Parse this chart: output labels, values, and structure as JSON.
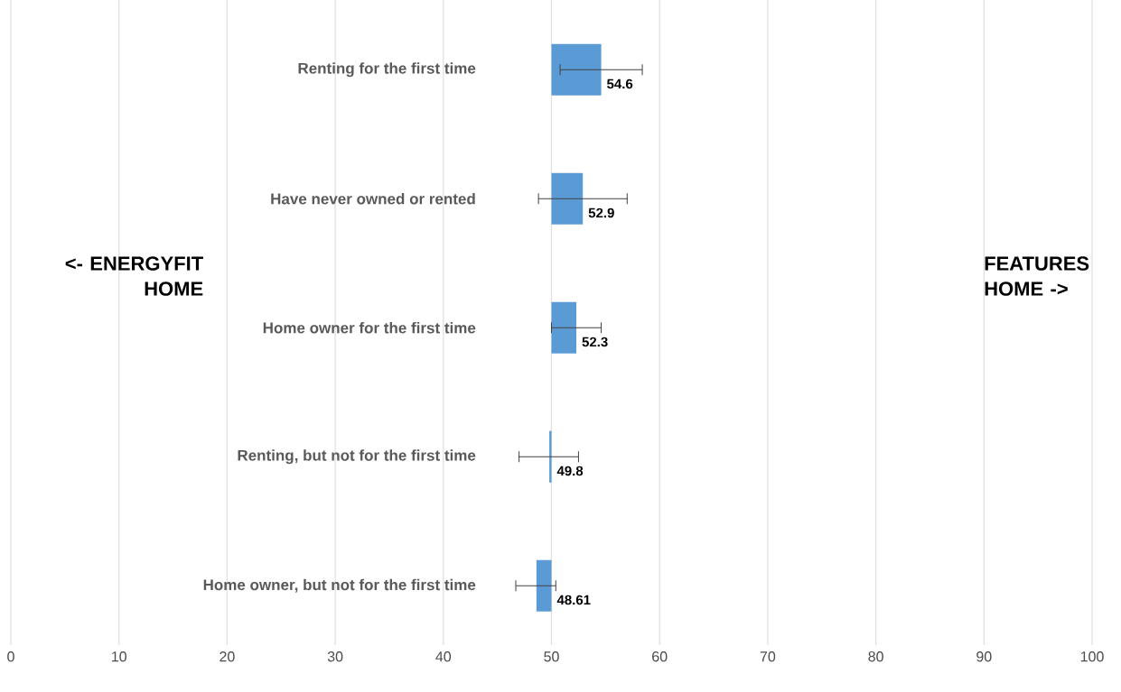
{
  "chart_data": {
    "type": "bar",
    "orientation": "horizontal",
    "categories": [
      "Renting for the first time",
      "Have never owned or rented",
      "Home owner for the first time",
      "Renting, but not for the first time",
      "Home owner, but not for the first time"
    ],
    "base": [
      50,
      50,
      50,
      50,
      50
    ],
    "values": [
      4.6,
      2.9,
      2.3,
      -0.2,
      -1.39
    ],
    "value_labels": [
      "54.6",
      "52.9",
      "52.3",
      "49.8",
      "48.61"
    ],
    "errors": [
      [
        50.8,
        58.4
      ],
      [
        48.8,
        57.0
      ],
      [
        50.0,
        54.6
      ],
      [
        47.0,
        52.5
      ],
      [
        46.7,
        50.4
      ]
    ],
    "color": "#5b9bd5",
    "xlim": [
      0,
      100
    ],
    "xticks": [
      0,
      10,
      20,
      30,
      40,
      50,
      60,
      70,
      80,
      90,
      100
    ],
    "grid": "x",
    "annotations": [
      "<- ENERGYFIT HOME",
      "FEATURES HOME ->"
    ]
  }
}
